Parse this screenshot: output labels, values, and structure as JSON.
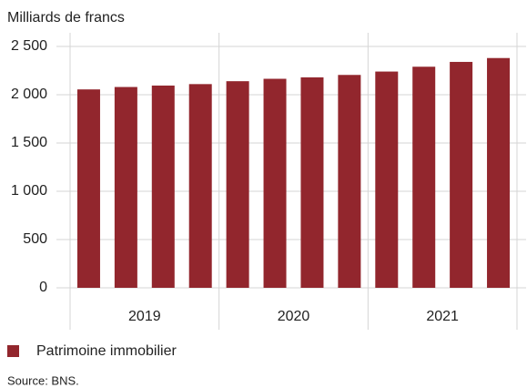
{
  "chart_data": {
    "type": "bar",
    "y_axis_label": "Milliards de francs",
    "categories": [
      null,
      null,
      null,
      null,
      null,
      null,
      null,
      null,
      null,
      null,
      null,
      null
    ],
    "groups": [
      "2019",
      "2020",
      "2021"
    ],
    "series": [
      {
        "name": "Patrimoine immobilier",
        "color": "#92262d",
        "values": [
          2055,
          2080,
          2095,
          2110,
          2140,
          2165,
          2180,
          2205,
          2240,
          2290,
          2340,
          2380
        ]
      }
    ],
    "ylim": [
      0,
      2650
    ],
    "yticks": [
      0,
      500,
      {
        "value": 1000,
        "label": "1 000"
      },
      {
        "value": 1500,
        "label": "1 500"
      },
      {
        "value": 2000,
        "label": "2 000"
      },
      {
        "value": 2500,
        "label": "2 500"
      }
    ],
    "grid": true,
    "source": "Source: BNS."
  }
}
